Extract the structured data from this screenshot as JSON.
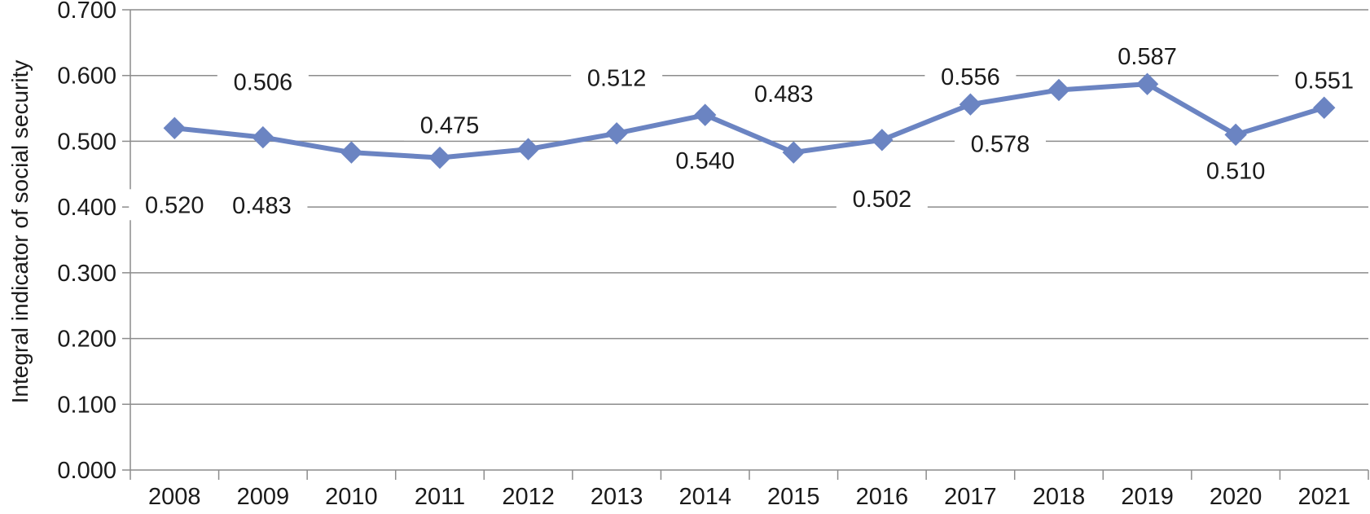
{
  "chart_data": {
    "type": "line",
    "x": [
      "2008",
      "2009",
      "2010",
      "2011",
      "2012",
      "2013",
      "2014",
      "2015",
      "2016",
      "2017",
      "2018",
      "2019",
      "2020",
      "2021"
    ],
    "series": [
      {
        "values": [
          0.52,
          0.506,
          0.483,
          0.475,
          0.488,
          0.512,
          0.54,
          0.483,
          0.502,
          0.556,
          0.578,
          0.587,
          0.51,
          0.551
        ],
        "color": "#6b84c2"
      }
    ],
    "data_labels": [
      "0.520",
      "0.506",
      "0.483",
      "0.475",
      "",
      "0.512",
      "0.540",
      "0.483",
      "0.502",
      "0.556",
      "0.578",
      "0.587",
      "0.510",
      "0.551"
    ],
    "title": "",
    "xlabel": "",
    "ylabel": "Integral indicator of social security",
    "ylim": [
      0,
      0.7
    ],
    "yticks": [
      "0.000",
      "0.100",
      "0.200",
      "0.300",
      "0.400",
      "0.500",
      "0.600",
      "0.700"
    ],
    "grid": true,
    "legend": "none",
    "marker": "diamond"
  }
}
